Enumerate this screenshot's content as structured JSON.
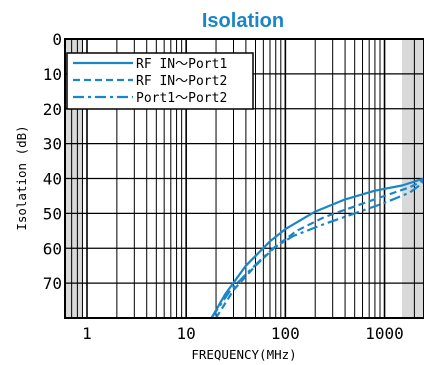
{
  "chart_data": {
    "type": "line",
    "title": "Isolation",
    "xlabel": "FREQUENCY(MHz)",
    "ylabel": "Isolation (dB)",
    "x_scale": "log",
    "xlim": [
      0.6,
      2500
    ],
    "ylim": [
      0,
      80
    ],
    "y_inverted": true,
    "x_ticks": [
      {
        "value": 1,
        "label": "1"
      },
      {
        "value": 10,
        "label": "10"
      },
      {
        "value": 100,
        "label": "100"
      },
      {
        "value": 1000,
        "label": "1000"
      }
    ],
    "y_ticks": [
      {
        "value": 0,
        "label": "0"
      },
      {
        "value": 10,
        "label": "10"
      },
      {
        "value": 20,
        "label": "20"
      },
      {
        "value": 30,
        "label": "30"
      },
      {
        "value": 40,
        "label": "40"
      },
      {
        "value": 50,
        "label": "50"
      },
      {
        "value": 60,
        "label": "60"
      },
      {
        "value": 70,
        "label": "70"
      }
    ],
    "grid": true,
    "shaded_ranges": [
      [
        0.6,
        0.9
      ],
      [
        1500,
        2500
      ]
    ],
    "legend_position": "top-left",
    "line_color": "#1a86c7",
    "series": [
      {
        "name": "RF IN～Port1",
        "dash": "solid",
        "points": [
          [
            18,
            80
          ],
          [
            25,
            73
          ],
          [
            40,
            65
          ],
          [
            70,
            58
          ],
          [
            100,
            54.5
          ],
          [
            200,
            49.5
          ],
          [
            400,
            46
          ],
          [
            800,
            43.5
          ],
          [
            1500,
            42
          ],
          [
            2500,
            40
          ]
        ]
      },
      {
        "name": "RF IN～Port2",
        "dash": "dashed",
        "points": [
          [
            20,
            80
          ],
          [
            30,
            72
          ],
          [
            50,
            65
          ],
          [
            80,
            59.5
          ],
          [
            130,
            55
          ],
          [
            250,
            51
          ],
          [
            500,
            48
          ],
          [
            1000,
            45
          ],
          [
            1800,
            42.5
          ],
          [
            2500,
            40.5
          ]
        ]
      },
      {
        "name": "Port1～Port2",
        "dash": "dashdot",
        "points": [
          [
            18,
            80
          ],
          [
            28,
            72
          ],
          [
            45,
            66
          ],
          [
            75,
            60
          ],
          [
            120,
            56.5
          ],
          [
            250,
            53
          ],
          [
            500,
            50
          ],
          [
            1000,
            47
          ],
          [
            1800,
            44
          ],
          [
            2500,
            41
          ]
        ]
      }
    ]
  }
}
